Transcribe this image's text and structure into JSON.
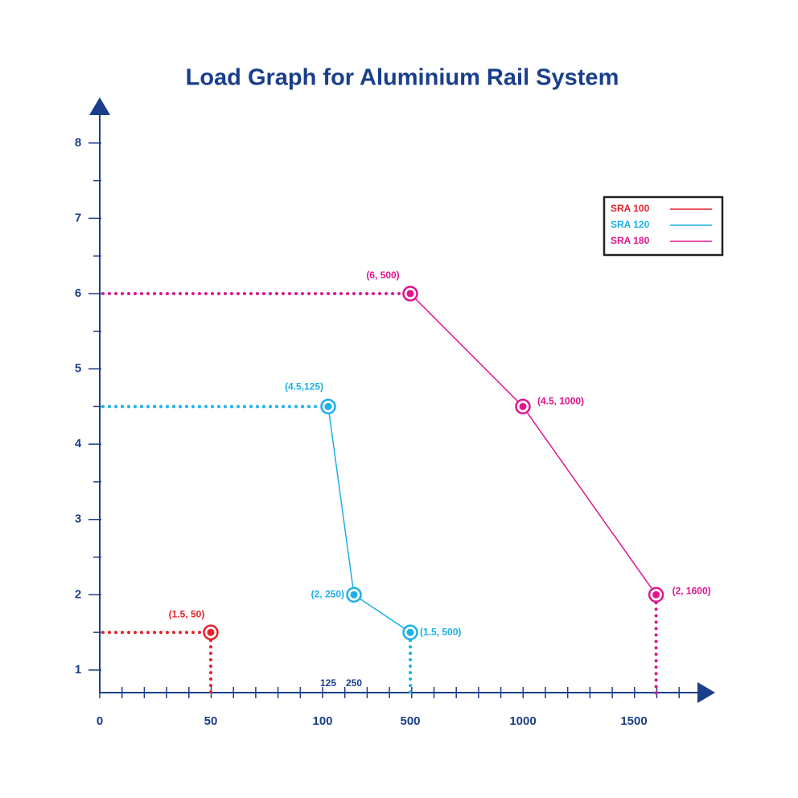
{
  "chart_data": {
    "type": "line",
    "title": "Load Graph for Aluminium Rail System",
    "series": [
      {
        "name": "SRA 100",
        "color": "#e3232b",
        "x": [
          50
        ],
        "values": [
          1.5
        ],
        "value_labels": [
          "(1.5, 50)"
        ]
      },
      {
        "name": "SRA 120",
        "color": "#1bb0e8",
        "x": [
          125,
          250,
          500
        ],
        "values": [
          4.5,
          2,
          1.5
        ],
        "value_labels": [
          "(4.5,125)",
          "(2, 250)",
          "(1.5, 500)"
        ]
      },
      {
        "name": "SRA 180",
        "color": "#e0158f",
        "x": [
          500,
          1000,
          1600
        ],
        "values": [
          6,
          4.5,
          2
        ],
        "value_labels": [
          "(6, 500)",
          "(4.5, 1000)",
          "(2, 1600)"
        ]
      }
    ],
    "xlim": [
      0,
      1750
    ],
    "xticks": [
      0,
      50,
      100,
      125,
      250,
      500,
      1000,
      1500
    ],
    "ylim": [
      0.7,
      8.5
    ],
    "yticks": [
      1,
      2,
      3,
      4,
      5,
      6,
      7,
      8
    ],
    "legend": "upper right",
    "axis_color": "#1a3f8a"
  }
}
